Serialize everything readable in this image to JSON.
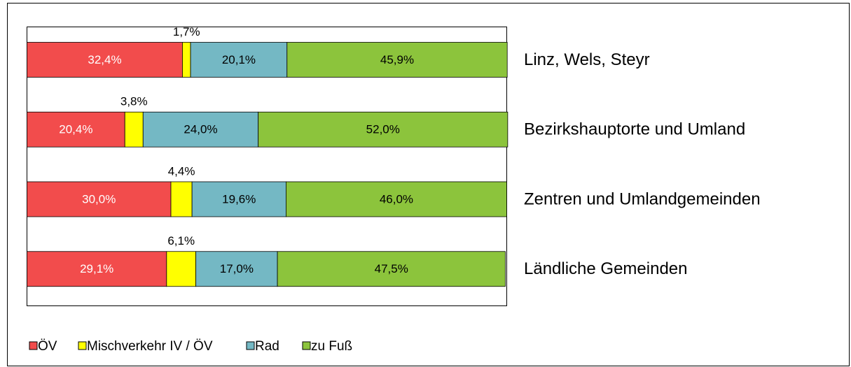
{
  "chart_data": {
    "type": "stacked-bar-horizontal",
    "categories": [
      "Linz, Wels, Steyr",
      "Bezirkshauptorte und Umland",
      "Zentren und Umlandgemeinden",
      "Ländliche Gemeinden"
    ],
    "series": [
      {
        "name": "ÖV",
        "color": "#f24c4c",
        "values": [
          32.4,
          20.4,
          30.0,
          29.1
        ],
        "value_labels": [
          "32,4%",
          "20,4%",
          "30,0%",
          "29,1%"
        ]
      },
      {
        "name": "Mischverkehr IV / ÖV",
        "color": "#ffff00",
        "values": [
          1.7,
          3.8,
          4.4,
          6.1
        ],
        "value_labels": [
          "1,7%",
          "3,8%",
          "4,4%",
          "6,1%"
        ]
      },
      {
        "name": "Rad",
        "color": "#74b8c4",
        "values": [
          20.1,
          24.0,
          19.6,
          17.0
        ],
        "value_labels": [
          "20,1%",
          "24,0%",
          "19,6%",
          "17,0%"
        ]
      },
      {
        "name": "zu Fuß",
        "color": "#8cc43c",
        "values": [
          45.9,
          52.0,
          46.0,
          47.5
        ],
        "value_labels": [
          "45,9%",
          "52,0%",
          "46,0%",
          "47,5%"
        ]
      }
    ],
    "xlim": [
      0,
      100
    ]
  }
}
